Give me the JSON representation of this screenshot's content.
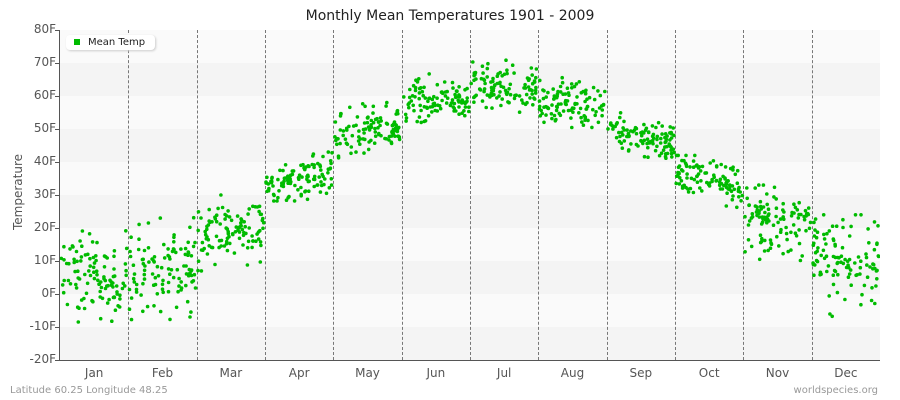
{
  "title": "Monthly Mean Temperatures 1901 - 2009",
  "footer": {
    "left": "Latitude 60.25 Longitude 48.25",
    "right": "worldspecies.org"
  },
  "colors": {
    "point": "#00bb00",
    "band_a": "#f4f4f4",
    "band_b": "#fafafa",
    "grid": "#777777"
  },
  "chart_data": {
    "type": "scatter",
    "title": "Monthly Mean Temperatures 1901 - 2009",
    "xlabel": "",
    "ylabel": "Temperature",
    "ylim": [
      -20,
      80
    ],
    "yticks": [
      "80F",
      "70F",
      "60F",
      "50F",
      "40F",
      "30F",
      "20F",
      "10F",
      "0F",
      "-10F",
      "-20F"
    ],
    "categories": [
      "Jan",
      "Feb",
      "Mar",
      "Apr",
      "May",
      "Jun",
      "Jul",
      "Aug",
      "Sep",
      "Oct",
      "Nov",
      "Dec"
    ],
    "legend": [
      "Mean Temp"
    ],
    "legend_position": "top-left",
    "years": 109,
    "series": [
      {
        "name": "Mean Temp",
        "monthly_mean": [
          5,
          7,
          19,
          35,
          49,
          59,
          63,
          58,
          48,
          35,
          22,
          10
        ],
        "monthly_min": [
          -10,
          -9,
          7,
          28,
          40,
          52,
          55,
          50,
          40,
          25,
          9,
          -11
        ],
        "monthly_max": [
          20,
          25,
          30,
          44,
          58,
          68,
          71,
          66,
          55,
          42,
          33,
          24
        ]
      }
    ]
  }
}
